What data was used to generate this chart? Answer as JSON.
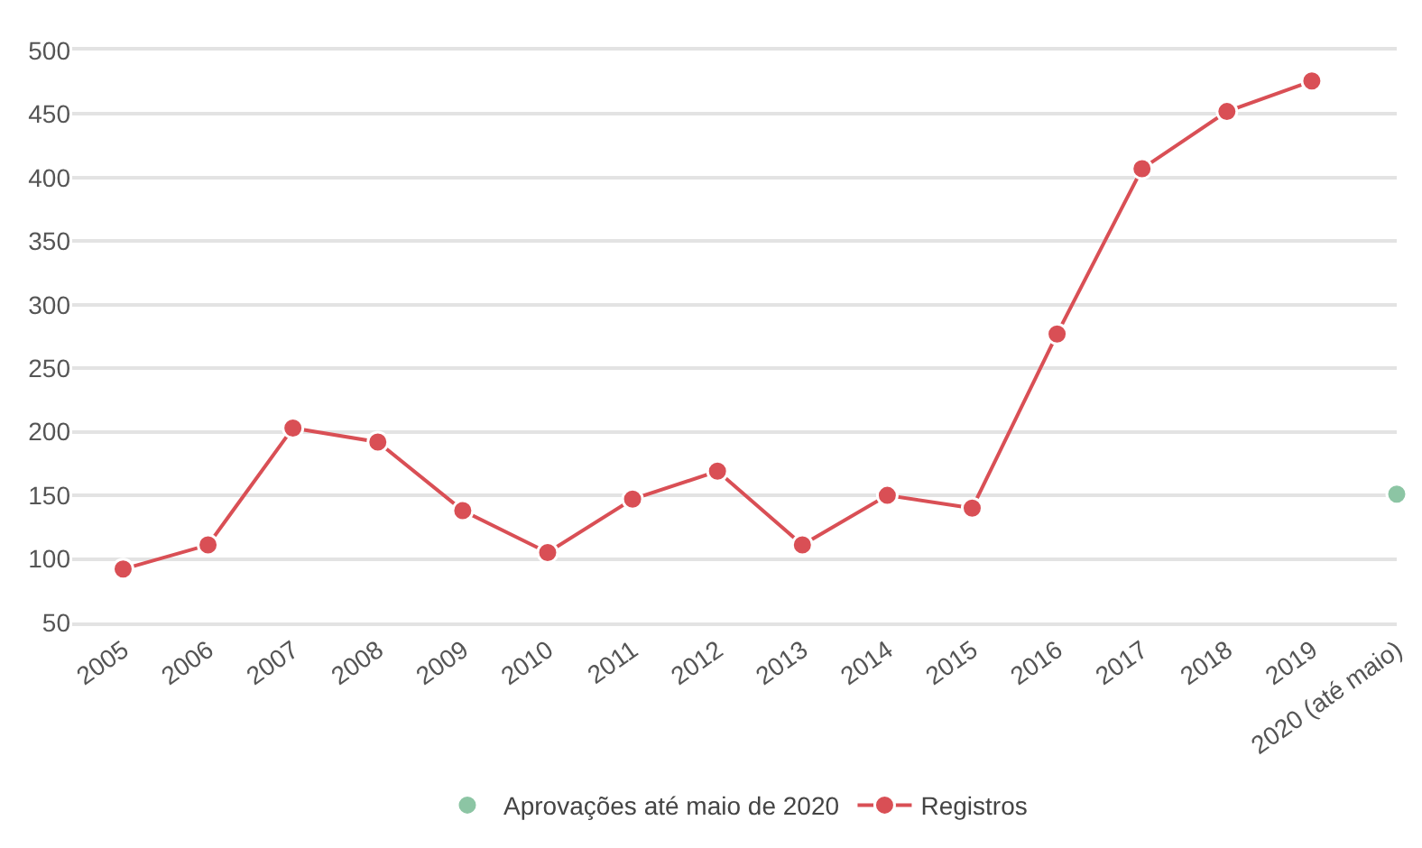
{
  "chart_data": {
    "type": "line",
    "categories": [
      "2005",
      "2006",
      "2007",
      "2008",
      "2009",
      "2010",
      "2011",
      "2012",
      "2013",
      "2014",
      "2015",
      "2016",
      "2017",
      "2018",
      "2019",
      "2020 (até maio)"
    ],
    "series": [
      {
        "name": "Aprovações até maio de 2020",
        "type": "scatter",
        "color": "#8cc5a4",
        "values": [
          null,
          null,
          null,
          null,
          null,
          null,
          null,
          null,
          null,
          null,
          null,
          null,
          null,
          null,
          null,
          151
        ]
      },
      {
        "name": "Registros",
        "color": "#d94f55",
        "values": [
          92,
          111,
          203,
          192,
          138,
          105,
          147,
          169,
          111,
          150,
          140,
          277,
          407,
          452,
          476,
          null
        ]
      }
    ],
    "ylim": [
      50,
      500
    ],
    "yticks": [
      50,
      100,
      150,
      200,
      250,
      300,
      350,
      400,
      450,
      500
    ],
    "grid": "y",
    "legend": "bottom",
    "marker": "circle",
    "line_style": "solid"
  }
}
